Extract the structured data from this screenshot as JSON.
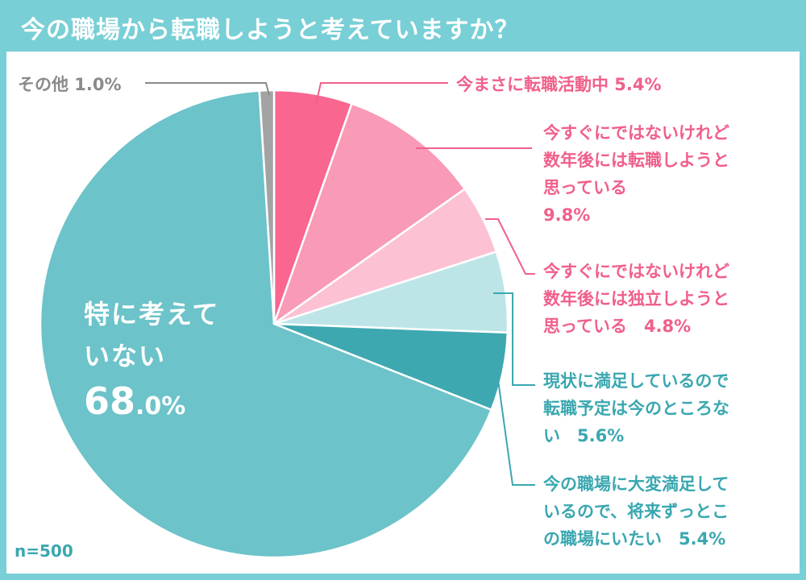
{
  "title": "今の職場から転職しようと考えていますか？",
  "sample_note": "n=500",
  "colors": {
    "header": "#78cfd6",
    "text_pink": "#f0608a",
    "text_teal": "#3aa7b0",
    "text_gray": "#8a8a8a"
  },
  "chart_data": {
    "type": "pie",
    "unit": "%",
    "slices": [
      {
        "label": "今まさに転職活動中",
        "value": 5.4,
        "value_text": "5.4%",
        "color": "#f9668f",
        "text_color": "#f0608a"
      },
      {
        "label": "今すぐにではないけれど数年後には転職しようと思っている",
        "value": 9.8,
        "value_text": "9.8%",
        "color": "#f99ab6",
        "text_color": "#f0608a"
      },
      {
        "label": "今すぐにではないけれど数年後には独立しようと思っている",
        "value": 4.8,
        "value_text": "4.8%",
        "color": "#fcc2d3",
        "text_color": "#f0608a"
      },
      {
        "label": "現状に満足しているので転職予定は今のところない",
        "value": 5.6,
        "value_text": "5.6%",
        "color": "#bde5e8",
        "text_color": "#3aa7b0"
      },
      {
        "label": "今の職場に大変満足しているので、将来ずっとこの職場にいたい",
        "value": 5.4,
        "value_text": "5.4%",
        "color": "#3ea8b1",
        "text_color": "#3aa7b0"
      },
      {
        "label": "特に考えていない",
        "value": 68.0,
        "value_text": "68.0%",
        "color": "#6cc3c9",
        "text_color": "#ffffff"
      },
      {
        "label": "その他",
        "value": 1.0,
        "value_text": "1.0%",
        "color": "#a3a3a3",
        "text_color": "#8a8a8a"
      }
    ]
  },
  "labels": {
    "active": {
      "lines": [
        "今まさに転職活動中 5.4%"
      ]
    },
    "future_job_change": {
      "lines": [
        "今すぐにではないけれど",
        "数年後には転職しようと",
        "思っている",
        "9.8%"
      ]
    },
    "future_independence": {
      "lines": [
        "今すぐにではないけれど",
        "数年後には独立しようと",
        "思っている　4.8%"
      ]
    },
    "satisfied_no_plan": {
      "lines": [
        "現状に満足しているので",
        "転職予定は今のところな",
        "い　5.6%"
      ]
    },
    "very_satisfied": {
      "lines": [
        "今の職場に大変満足して",
        "いるので、将来ずっとこ",
        "の職場にいたい　5.4%"
      ]
    },
    "not_thinking": {
      "line1": "特に考えて",
      "line2": "いない",
      "number": "68",
      "decimal": ".0%"
    },
    "other": {
      "lines": [
        "その他 1.0%"
      ]
    }
  }
}
